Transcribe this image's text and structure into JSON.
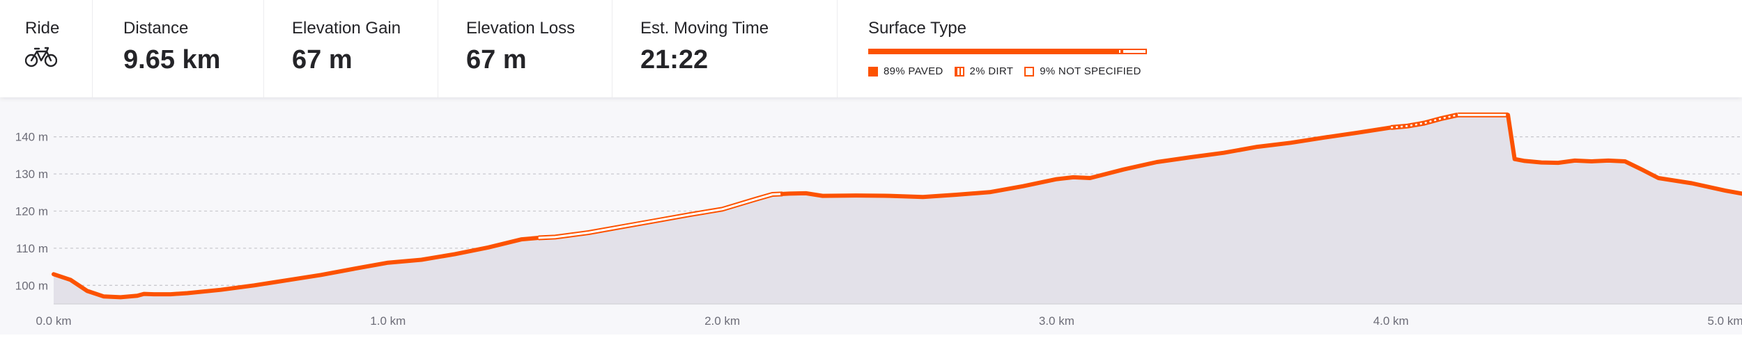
{
  "stats": {
    "ride": {
      "label": "Ride",
      "icon": "bike-icon"
    },
    "distance": {
      "label": "Distance",
      "value": "9.65 km"
    },
    "elevation_gain": {
      "label": "Elevation Gain",
      "value": "67 m"
    },
    "elevation_loss": {
      "label": "Elevation Loss",
      "value": "67 m"
    },
    "moving_time": {
      "label": "Est. Moving Time",
      "value": "21:22"
    }
  },
  "surface": {
    "title": "Surface Type",
    "items": [
      {
        "key": "paved",
        "label": "89% PAVED",
        "percent": 89
      },
      {
        "key": "dirt",
        "label": "2% DIRT",
        "percent": 2
      },
      {
        "key": "not_specified",
        "label": "9% NOT SPECIFIED",
        "percent": 9
      }
    ]
  },
  "colors": {
    "accent": "#fc5200",
    "area_fill": "#e3e1e9",
    "plot_bg": "#f7f7fa",
    "grid": "#c9c9cf",
    "axis_text": "#6d6d78"
  },
  "chart_data": {
    "type": "area",
    "title": "",
    "xlabel": "",
    "ylabel": "",
    "x_unit": "km",
    "y_unit": "m",
    "xlim": [
      0,
      5.05
    ],
    "ylim": [
      95,
      146.5
    ],
    "xticks": [
      0,
      1,
      2,
      3,
      4,
      5
    ],
    "xtick_labels": [
      "0.0 km",
      "1.0 km",
      "2.0 km",
      "3.0 km",
      "4.0 km",
      "5.0 km"
    ],
    "yticks": [
      100,
      110,
      120,
      130,
      140
    ],
    "ytick_labels": [
      "100 m",
      "110 m",
      "120 m",
      "130 m",
      "140 m"
    ],
    "grid": true,
    "x": [
      0,
      0.05,
      0.1,
      0.15,
      0.2,
      0.25,
      0.27,
      0.3,
      0.35,
      0.4,
      0.5,
      0.6,
      0.7,
      0.8,
      0.9,
      1.0,
      1.1,
      1.2,
      1.3,
      1.4,
      1.45,
      1.5,
      1.6,
      1.7,
      1.8,
      1.9,
      2.0,
      2.1,
      2.15,
      2.18,
      2.2,
      2.25,
      2.3,
      2.4,
      2.5,
      2.6,
      2.7,
      2.8,
      2.9,
      3.0,
      3.05,
      3.1,
      3.2,
      3.3,
      3.4,
      3.5,
      3.6,
      3.7,
      3.8,
      3.9,
      4.0,
      4.05,
      4.1,
      4.15,
      4.2,
      4.25,
      4.3,
      4.35,
      4.37,
      4.4,
      4.45,
      4.5,
      4.55,
      4.6,
      4.65,
      4.7,
      4.75,
      4.8,
      4.9,
      5.0,
      5.05
    ],
    "elevation": [
      103,
      101.5,
      98.5,
      97,
      96.8,
      97.2,
      97.7,
      97.6,
      97.6,
      97.9,
      98.8,
      100,
      101.4,
      102.8,
      104.5,
      106.1,
      106.9,
      108.4,
      110.2,
      112.4,
      112.8,
      113,
      114.2,
      115.8,
      117.4,
      119,
      120.5,
      123.2,
      124.5,
      124.6,
      124.7,
      124.8,
      124.1,
      124.2,
      124.1,
      123.8,
      124.4,
      125.1,
      126.7,
      128.6,
      129.1,
      128.9,
      131.2,
      133.2,
      134.5,
      135.7,
      137.3,
      138.4,
      139.8,
      141.1,
      142.5,
      142.9,
      143.7,
      144.9,
      145.9,
      145.9,
      145.9,
      145.9,
      134,
      133.5,
      133.1,
      133,
      133.6,
      133.4,
      133.6,
      133.4,
      131.2,
      128.9,
      127.5,
      125.5,
      124.7
    ],
    "surface_segments": [
      {
        "surface": "paved",
        "x0": 0,
        "x1": 1.45
      },
      {
        "surface": "not_specified",
        "x0": 1.45,
        "x1": 2.18
      },
      {
        "surface": "paved",
        "x0": 2.18,
        "x1": 4.0
      },
      {
        "surface": "dirt",
        "x0": 4.0,
        "x1": 4.2
      },
      {
        "surface": "not_specified",
        "x0": 4.2,
        "x1": 4.35
      },
      {
        "surface": "paved",
        "x0": 4.35,
        "x1": 5.05
      }
    ]
  }
}
